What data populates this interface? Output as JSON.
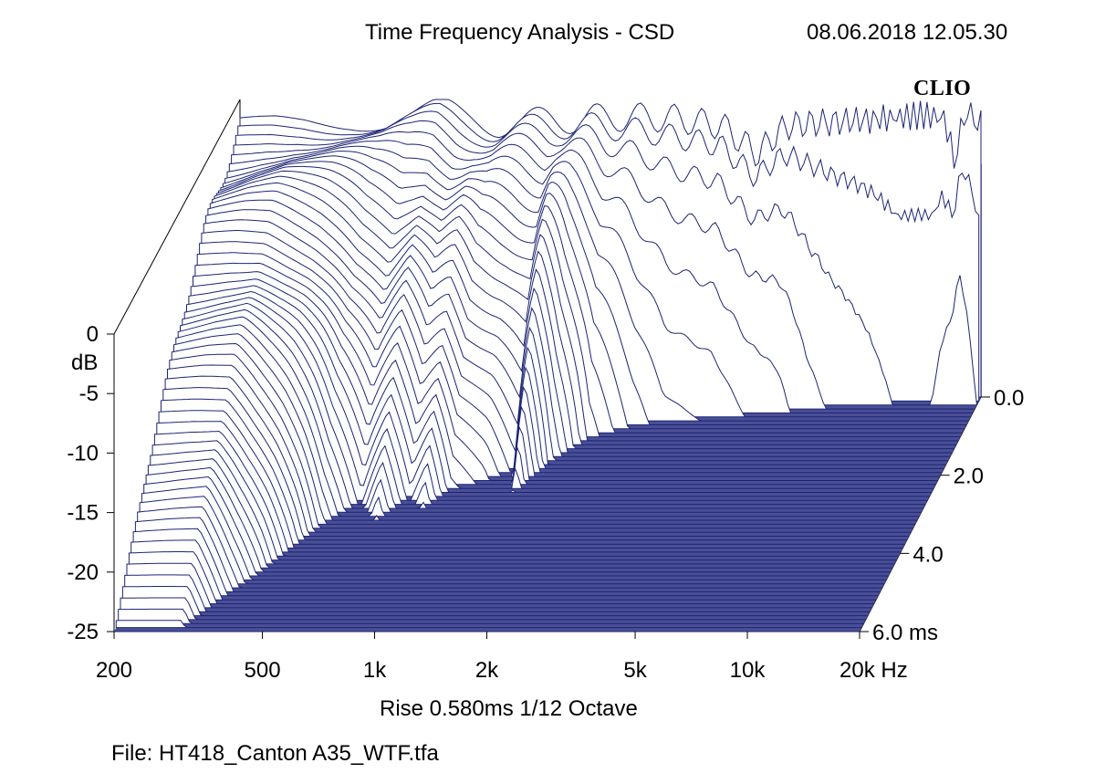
{
  "header": {
    "title": "Time Frequency Analysis - CSD",
    "timestamp": "08.06.2018 12.05.30",
    "brand": "CLIO"
  },
  "footer": {
    "settings": "Rise 0.580ms   1/12 Octave",
    "file": "File: HT418_Canton A35_WTF.tfa"
  },
  "colors": {
    "line": "#1c2473",
    "fill": "#ffffff",
    "floor": "#4a4f96",
    "frame": "#000000"
  },
  "chart_data": {
    "type": "waterfall",
    "title": "Time Frequency Analysis - CSD",
    "x_axis": {
      "label": "Hz",
      "scale": "log",
      "range": [
        200,
        20000
      ],
      "ticks": [
        200,
        500,
        1000,
        2000,
        5000,
        10000,
        20000
      ],
      "tick_labels": [
        "200",
        "500",
        "1k",
        "2k",
        "5k",
        "10k",
        "20k Hz"
      ]
    },
    "y_axis": {
      "label": "dB",
      "range": [
        -25,
        0
      ],
      "ticks": [
        0,
        -5,
        -10,
        -15,
        -20,
        -25
      ],
      "tick_labels": [
        "0",
        "-5",
        "-10",
        "-15",
        "-20",
        "-25"
      ]
    },
    "z_axis": {
      "label": "ms",
      "range": [
        0,
        6
      ],
      "ticks": [
        0,
        2,
        4,
        6
      ],
      "tick_labels": [
        "0.0",
        "2.0",
        "4.0",
        "6.0  ms"
      ]
    },
    "slice_count": 60,
    "initial_response_db": {
      "freq_hz": [
        200,
        250,
        300,
        400,
        500,
        600,
        700,
        800,
        1000,
        1200,
        1500,
        2000,
        2500,
        3000,
        4000,
        5000,
        5500,
        6000,
        7000,
        8000,
        10000,
        12000,
        14000,
        16000,
        17000,
        18000,
        20000
      ],
      "level_db": [
        -2.5,
        -1.8,
        -1.5,
        -1.4,
        -1.6,
        -1.3,
        -1.0,
        -1.5,
        -2.0,
        -1.9,
        -1.7,
        -1.5,
        -1.5,
        -1.6,
        -2.2,
        -4.6,
        -3.2,
        -2.2,
        -2.0,
        -1.9,
        -1.7,
        -1.5,
        -1.3,
        -1.6,
        -5.5,
        -1.2,
        -1.8
      ]
    },
    "decay_ms_to_floor": {
      "freq_hz": [
        200,
        230,
        260,
        300,
        350,
        400,
        450,
        500,
        600,
        700,
        800,
        900,
        1000,
        1200,
        1400,
        1500,
        1700,
        2000,
        2500,
        3000,
        4000,
        5000,
        6000,
        7000,
        8000,
        10000,
        12000,
        15000,
        18000,
        20000
      ],
      "decay_ms": [
        6.0,
        6.0,
        6.0,
        6.0,
        5.2,
        4.6,
        4.0,
        3.4,
        2.7,
        3.2,
        2.6,
        2.9,
        2.4,
        2.2,
        1.9,
        2.5,
        1.7,
        1.1,
        0.8,
        0.65,
        0.6,
        0.5,
        0.45,
        0.35,
        0.3,
        0.25,
        0.2,
        0.2,
        0.3,
        0.2
      ]
    }
  }
}
